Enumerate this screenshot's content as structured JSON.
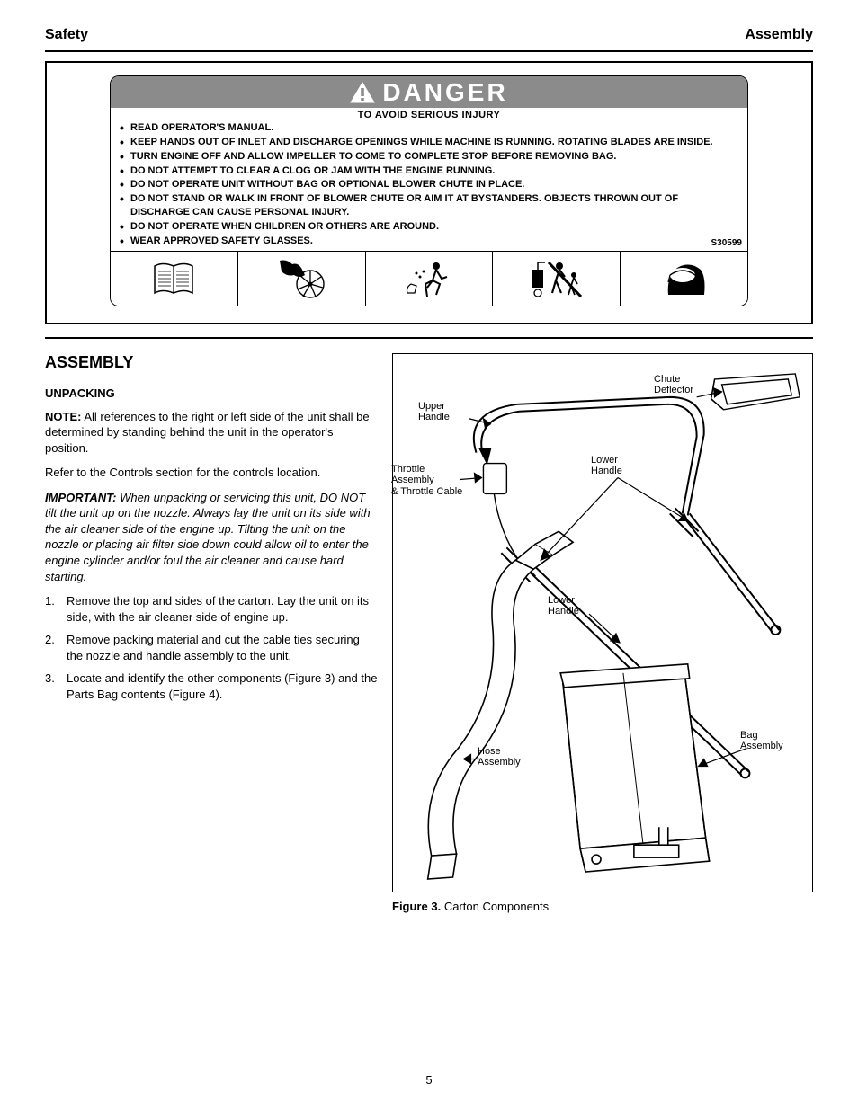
{
  "header": {
    "left": "Safety",
    "right": "Assembly"
  },
  "danger": {
    "title": "DANGER",
    "sub": "TO AVOID SERIOUS INJURY",
    "items": [
      "READ OPERATOR'S MANUAL.",
      "KEEP HANDS OUT OF INLET AND DISCHARGE OPENINGS WHILE   MACHINE IS RUNNING.  ROTATING BLADES ARE INSIDE.",
      "TURN ENGINE OFF AND ALLOW IMPELLER TO COME TO COMPLETE STOP BEFORE REMOVING BAG.",
      "DO NOT ATTEMPT TO CLEAR A CLOG OR JAM WITH THE ENGINE RUNNING.",
      "DO NOT OPERATE UNIT WITHOUT BAG OR OPTIONAL BLOWER CHUTE IN PLACE.",
      "DO NOT STAND OR WALK IN FRONT OF BLOWER CHUTE OR AIM IT AT BYSTANDERS. OBJECTS THROWN OUT OF DISCHARGE CAN CAUSE PERSONAL INJURY.",
      "DO NOT OPERATE WHEN CHILDREN OR OTHERS ARE AROUND.",
      "WEAR APPROVED SAFETY GLASSES."
    ],
    "sref": "S30599",
    "iconColor": "#000000"
  },
  "assembly": {
    "heading": "ASSEMBLY",
    "unpack": "UNPACKING",
    "note": {
      "label": "NOTE:",
      "text": "All references to the right or left side of the unit shall be determined by standing behind the unit in the operator's position."
    },
    "important": {
      "label": "IMPORTANT:",
      "text": "When unpacking or servicing this unit, DO NOT tilt the unit up on the nozzle. Always lay the unit on its side with the air cleaner side of the engine up. Tilting the unit on the nozzle or placing air filter side down could allow oil to enter the engine cylinder and/or foul the air cleaner and cause hard starting."
    },
    "steps": [
      "Remove the top and sides of the carton. Lay the unit on its side, with the air cleaner side of engine up.",
      "Remove packing material and cut the cable ties securing the nozzle and handle assembly to the unit.",
      "Locate and identify the other components (Figure 3) and the Parts Bag contents (Figure 4)."
    ],
    "controlsRef": "Refer to the Controls section for the controls location."
  },
  "figure": {
    "callouts": {
      "hose": "Hose\nAssembly",
      "upper": "Upper\nHandle",
      "throttle": "Throttle Assembly\n& Throttle Cable",
      "lower": "Lower\nHandle",
      "chute": "Chute\nDeflector",
      "bag": "Bag\nAssembly"
    },
    "labelNo": "Figure 3.",
    "labelText": "Carton Components"
  },
  "pageNumber": "5"
}
